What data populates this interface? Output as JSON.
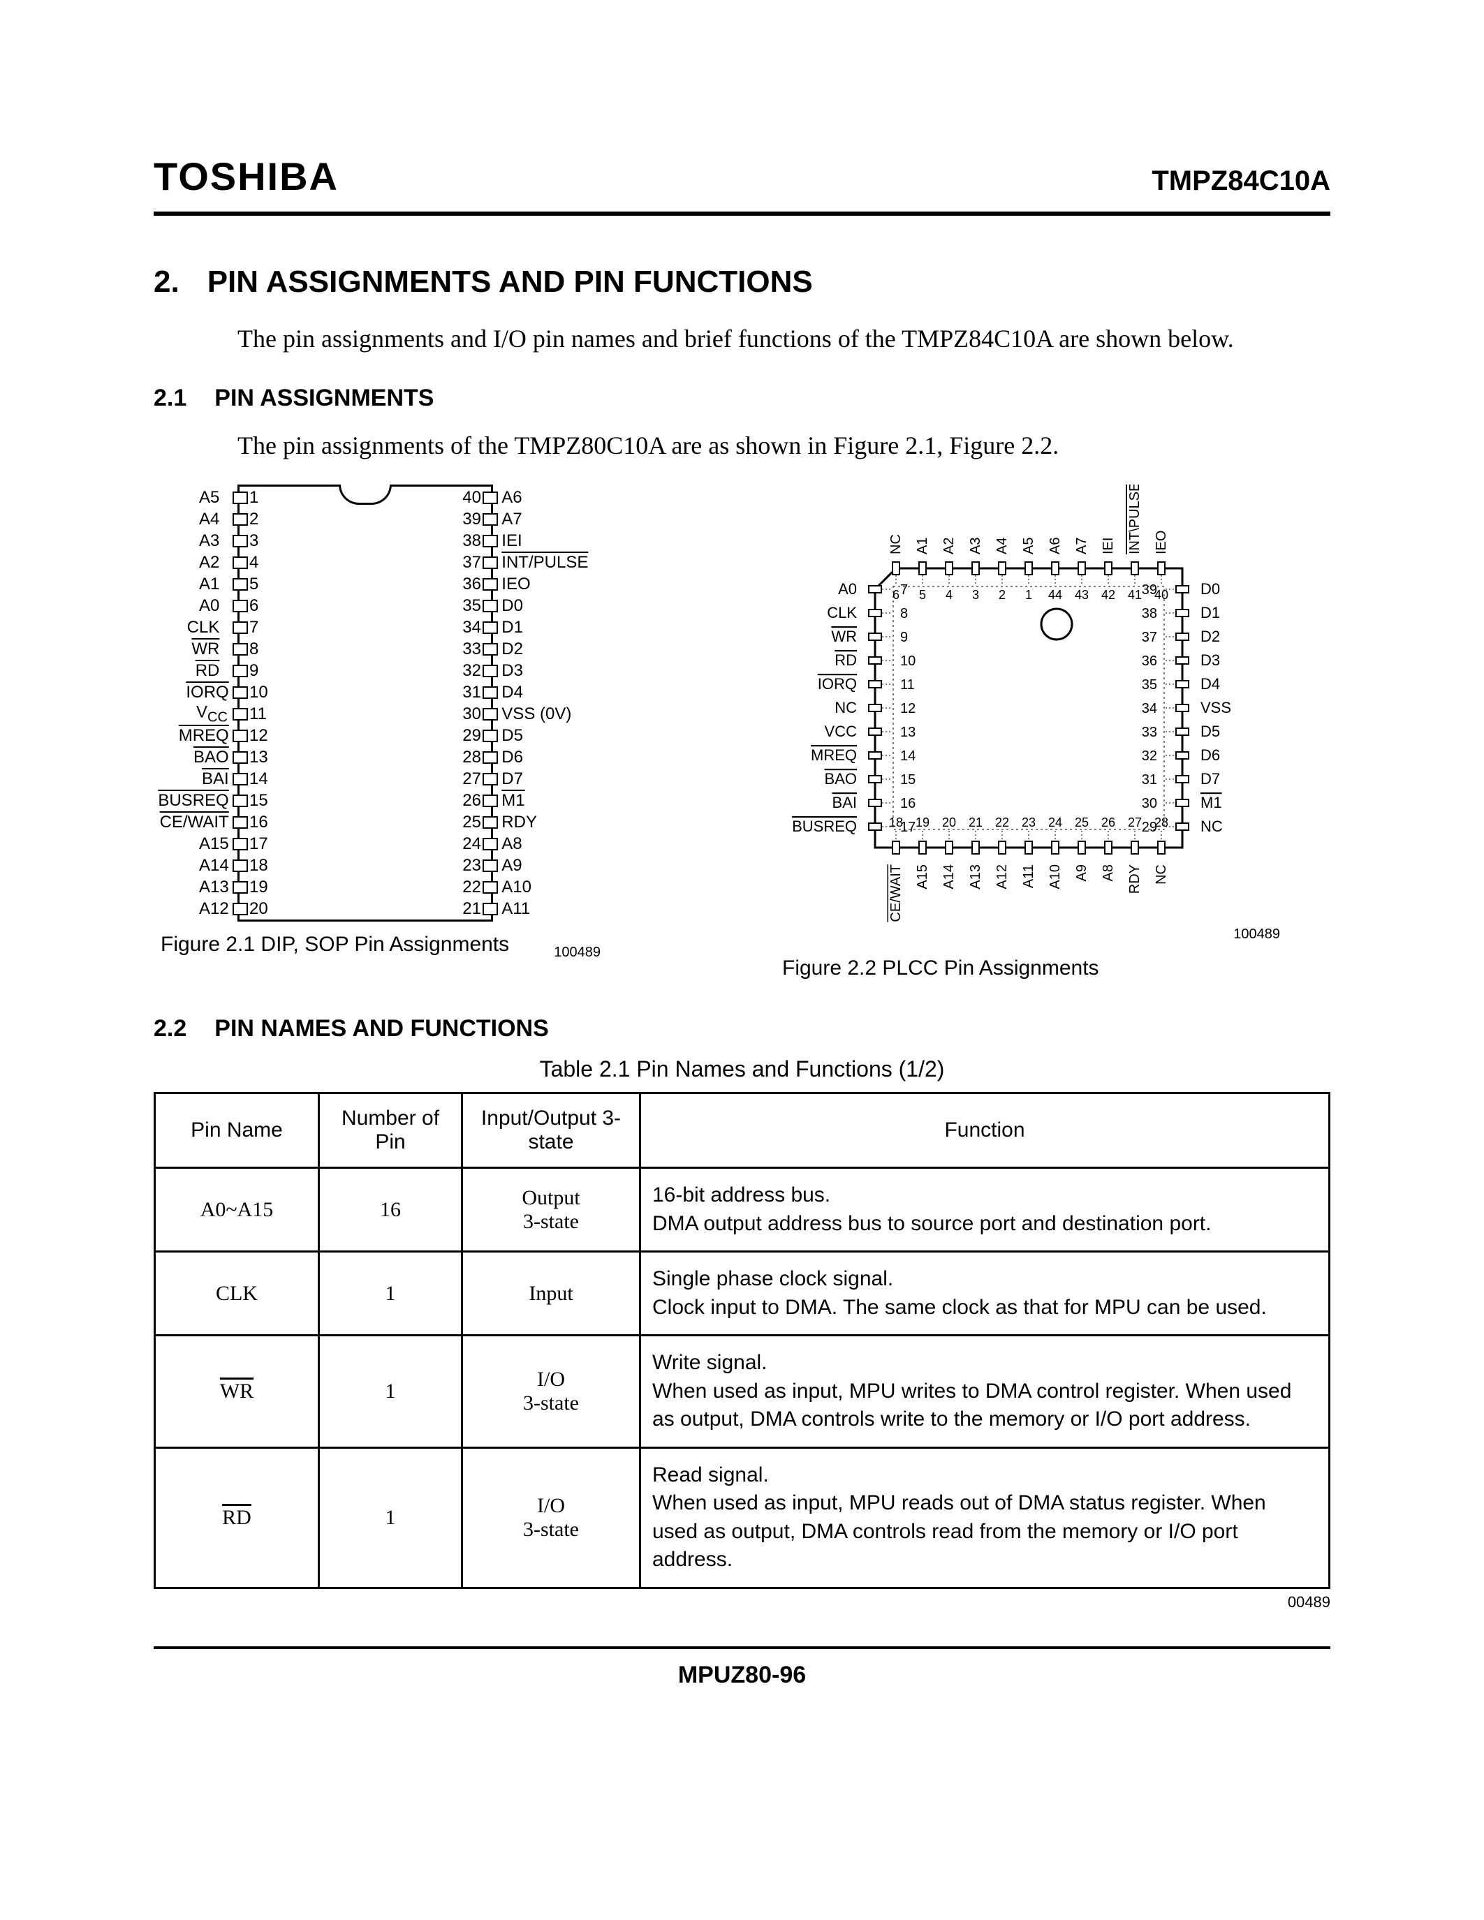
{
  "header": {
    "brand": "TOSHIBA",
    "part": "TMPZ84C10A"
  },
  "section": {
    "num": "2.",
    "title": "PIN ASSIGNMENTS AND PIN FUNCTIONS",
    "intro": "The pin assignments and I/O pin names and brief functions of the TMPZ84C10A are shown below."
  },
  "sub1": {
    "num": "2.1",
    "title": "PIN ASSIGNMENTS",
    "intro": "The pin assignments of the TMPZ80C10A are as shown in Figure 2.1, Figure 2.2."
  },
  "dip": {
    "caption": "Figure 2.1   DIP,  SOP Pin Assignments",
    "figid": "100489",
    "left": [
      {
        "n": "1",
        "l": "A5",
        "ov": false
      },
      {
        "n": "2",
        "l": "A4",
        "ov": false
      },
      {
        "n": "3",
        "l": "A3",
        "ov": false
      },
      {
        "n": "4",
        "l": "A2",
        "ov": false
      },
      {
        "n": "5",
        "l": "A1",
        "ov": false
      },
      {
        "n": "6",
        "l": "A0",
        "ov": false
      },
      {
        "n": "7",
        "l": "CLK",
        "ov": false
      },
      {
        "n": "8",
        "l": "WR",
        "ov": true
      },
      {
        "n": "9",
        "l": "RD",
        "ov": true
      },
      {
        "n": "10",
        "l": "IORQ",
        "ov": true
      },
      {
        "n": "11",
        "l": "V",
        "sub": "CC",
        "ov": false
      },
      {
        "n": "12",
        "l": "MREQ",
        "ov": true
      },
      {
        "n": "13",
        "l": "BAO",
        "ov": true
      },
      {
        "n": "14",
        "l": "BAI",
        "ov": true
      },
      {
        "n": "15",
        "l": "BUSREQ",
        "ov": true
      },
      {
        "n": "16",
        "l": "CE/WAIT",
        "ov": true
      },
      {
        "n": "17",
        "l": "A15",
        "ov": false
      },
      {
        "n": "18",
        "l": "A14",
        "ov": false
      },
      {
        "n": "19",
        "l": "A13",
        "ov": false
      },
      {
        "n": "20",
        "l": "A12",
        "ov": false
      }
    ],
    "right": [
      {
        "n": "40",
        "l": "A6",
        "ov": false
      },
      {
        "n": "39",
        "l": "A7",
        "ov": false
      },
      {
        "n": "38",
        "l": "IEI",
        "ov": false
      },
      {
        "n": "37",
        "l": "INT/PULSE",
        "ov": true
      },
      {
        "n": "36",
        "l": "IEO",
        "ov": false
      },
      {
        "n": "35",
        "l": "D0",
        "ov": false
      },
      {
        "n": "34",
        "l": "D1",
        "ov": false
      },
      {
        "n": "33",
        "l": "D2",
        "ov": false
      },
      {
        "n": "32",
        "l": "D3",
        "ov": false
      },
      {
        "n": "31",
        "l": "D4",
        "ov": false
      },
      {
        "n": "30",
        "l": "VSS (0V)",
        "ov": false
      },
      {
        "n": "29",
        "l": "D5",
        "ov": false
      },
      {
        "n": "28",
        "l": "D6",
        "ov": false
      },
      {
        "n": "27",
        "l": "D7",
        "ov": false
      },
      {
        "n": "26",
        "l": "M1",
        "ov": true
      },
      {
        "n": "25",
        "l": "RDY",
        "ov": false
      },
      {
        "n": "24",
        "l": "A8",
        "ov": false
      },
      {
        "n": "23",
        "l": "A9",
        "ov": false
      },
      {
        "n": "22",
        "l": "A10",
        "ov": false
      },
      {
        "n": "21",
        "l": "A11",
        "ov": false
      }
    ]
  },
  "plcc": {
    "caption": "Figure 2.2   PLCC Pin Assignments",
    "figid": "100489",
    "top": [
      {
        "l": "NC"
      },
      {
        "l": "A1"
      },
      {
        "l": "A2"
      },
      {
        "l": "A3"
      },
      {
        "l": "A4"
      },
      {
        "l": "A5"
      },
      {
        "l": "A6"
      },
      {
        "l": "A7"
      },
      {
        "l": "IEI"
      },
      {
        "l": "INT\\PULSE",
        "ov": true
      },
      {
        "l": "IEO"
      }
    ],
    "topnums": [
      "6",
      "5",
      "4",
      "3",
      "2",
      "1",
      "44",
      "43",
      "42",
      "41",
      "40"
    ],
    "left": [
      {
        "n": "7",
        "l": "A0"
      },
      {
        "n": "8",
        "l": "CLK"
      },
      {
        "n": "9",
        "l": "WR",
        "ov": true
      },
      {
        "n": "10",
        "l": "RD",
        "ov": true
      },
      {
        "n": "11",
        "l": "IORQ",
        "ov": true
      },
      {
        "n": "12",
        "l": "NC"
      },
      {
        "n": "13",
        "l": "VCC"
      },
      {
        "n": "14",
        "l": "MREQ",
        "ov": true
      },
      {
        "n": "15",
        "l": "BAO",
        "ov": true
      },
      {
        "n": "16",
        "l": "BAI",
        "ov": true
      },
      {
        "n": "17",
        "l": "BUSREQ",
        "ov": true
      }
    ],
    "right": [
      {
        "n": "39",
        "l": "D0"
      },
      {
        "n": "38",
        "l": "D1"
      },
      {
        "n": "37",
        "l": "D2"
      },
      {
        "n": "36",
        "l": "D3"
      },
      {
        "n": "35",
        "l": "D4"
      },
      {
        "n": "34",
        "l": "VSS"
      },
      {
        "n": "33",
        "l": "D5"
      },
      {
        "n": "32",
        "l": "D6"
      },
      {
        "n": "31",
        "l": "D7"
      },
      {
        "n": "30",
        "l": "M1",
        "ov": true
      },
      {
        "n": "29",
        "l": "NC"
      }
    ],
    "bottom": [
      {
        "l": "CE/WAIT",
        "ov": true
      },
      {
        "l": "A15"
      },
      {
        "l": "A14"
      },
      {
        "l": "A13"
      },
      {
        "l": "A12"
      },
      {
        "l": "A11"
      },
      {
        "l": "A10"
      },
      {
        "l": "A9"
      },
      {
        "l": "A8"
      },
      {
        "l": "RDY"
      },
      {
        "l": "NC"
      }
    ],
    "bottomnums": [
      "18",
      "19",
      "20",
      "21",
      "22",
      "23",
      "24",
      "25",
      "26",
      "27",
      "28"
    ]
  },
  "sub2": {
    "num": "2.2",
    "title": "PIN NAMES AND FUNCTIONS"
  },
  "table": {
    "title": "Table 2.1   Pin Names and Functions (1/2)",
    "id": "00489",
    "headers": [
      "Pin Name",
      "Number of Pin",
      "Input/Output 3-state",
      "Function"
    ],
    "rows": [
      {
        "name": "A0~A15",
        "ov": false,
        "num": "16",
        "io": "Output\n3-state",
        "fn": "16-bit address bus.\nDMA output address bus to source port and destination port."
      },
      {
        "name": "CLK",
        "ov": false,
        "num": "1",
        "io": "Input",
        "fn": "Single phase clock signal.\nClock input to DMA.  The same clock as that for MPU can be used."
      },
      {
        "name": "WR",
        "ov": true,
        "num": "1",
        "io": "I/O\n3-state",
        "fn": "Write signal.\nWhen used as input, MPU writes to DMA control register.  When used as output, DMA controls write to the memory or I/O port address."
      },
      {
        "name": "RD",
        "ov": true,
        "num": "1",
        "io": "I/O\n3-state",
        "fn": "Read signal.\nWhen used as input, MPU reads out of DMA status register.  When used as output, DMA controls read from the memory or I/O port address."
      }
    ]
  },
  "footer": "MPUZ80-96"
}
